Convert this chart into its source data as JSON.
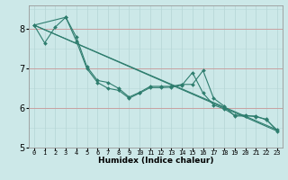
{
  "title": "",
  "xlabel": "Humidex (Indice chaleur)",
  "ylabel": "",
  "bg_color": "#cce8e8",
  "grid_color_minor": "#b8d8d8",
  "grid_color_major_h": "#c8a0a0",
  "line_color": "#2e7d6e",
  "xmin": -0.5,
  "xmax": 23.5,
  "ymin": 5,
  "ymax": 8.6,
  "yticks": [
    5,
    6,
    7,
    8
  ],
  "series1_x": [
    0,
    1,
    2,
    3,
    4,
    5,
    6,
    7,
    8,
    9,
    10,
    11,
    12,
    13,
    14,
    15,
    16,
    17,
    18,
    19,
    20,
    21,
    22,
    23
  ],
  "series1_y": [
    8.1,
    7.65,
    8.05,
    8.3,
    7.8,
    7.05,
    6.7,
    6.65,
    6.5,
    6.28,
    6.4,
    6.55,
    6.55,
    6.55,
    6.6,
    6.6,
    6.95,
    6.25,
    6.05,
    5.8,
    5.8,
    5.8,
    5.7,
    5.45
  ],
  "series2_x": [
    0,
    3,
    4,
    5,
    6,
    7,
    8,
    9,
    10,
    11,
    12,
    13,
    14,
    15,
    16,
    17,
    18,
    19,
    20,
    21,
    22,
    23
  ],
  "series2_y": [
    8.1,
    8.3,
    7.7,
    7.0,
    6.65,
    6.5,
    6.45,
    6.25,
    6.38,
    6.52,
    6.52,
    6.53,
    6.58,
    6.9,
    6.38,
    6.08,
    5.98,
    5.82,
    5.82,
    5.78,
    5.72,
    5.42
  ],
  "series3_x": [
    0,
    23
  ],
  "series3_y": [
    8.1,
    5.45
  ],
  "series4_x": [
    0,
    23
  ],
  "series4_y": [
    8.1,
    5.42
  ],
  "xtick_labels": [
    "0",
    "1",
    "2",
    "3",
    "4",
    "5",
    "6",
    "7",
    "8",
    "9",
    "10",
    "11",
    "12",
    "13",
    "14",
    "15",
    "16",
    "17",
    "18",
    "19",
    "20",
    "21",
    "22",
    "23"
  ],
  "xlabel_fontsize": 6.5,
  "xlabel_fontweight": "bold",
  "ytick_fontsize": 7,
  "xtick_fontsize": 5,
  "line_width": 0.8,
  "marker_size": 2.0
}
